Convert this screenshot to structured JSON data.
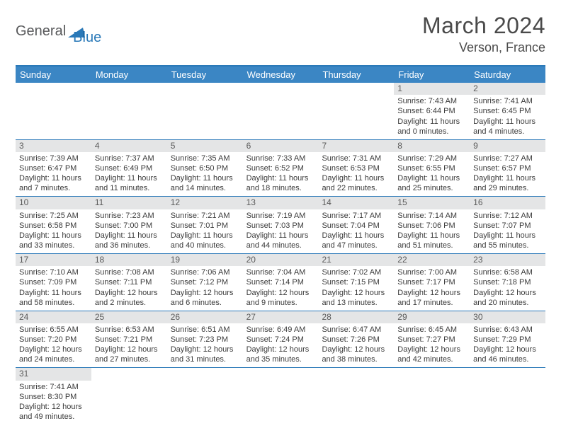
{
  "brand": {
    "part1": "General",
    "part2": "Blue"
  },
  "title": "March 2024",
  "location": "Verson, France",
  "colors": {
    "accent": "#2a79b8",
    "header_bg": "#3b86c4",
    "daynum_bg": "#e4e5e6",
    "text": "#3a3a3a",
    "title_text": "#4a4a4a"
  },
  "dow": [
    "Sunday",
    "Monday",
    "Tuesday",
    "Wednesday",
    "Thursday",
    "Friday",
    "Saturday"
  ],
  "weeks": [
    [
      {},
      {},
      {},
      {},
      {},
      {
        "d": "1",
        "sr": "7:43 AM",
        "ss": "6:44 PM",
        "dl": "11 hours and 0 minutes."
      },
      {
        "d": "2",
        "sr": "7:41 AM",
        "ss": "6:45 PM",
        "dl": "11 hours and 4 minutes."
      }
    ],
    [
      {
        "d": "3",
        "sr": "7:39 AM",
        "ss": "6:47 PM",
        "dl": "11 hours and 7 minutes."
      },
      {
        "d": "4",
        "sr": "7:37 AM",
        "ss": "6:49 PM",
        "dl": "11 hours and 11 minutes."
      },
      {
        "d": "5",
        "sr": "7:35 AM",
        "ss": "6:50 PM",
        "dl": "11 hours and 14 minutes."
      },
      {
        "d": "6",
        "sr": "7:33 AM",
        "ss": "6:52 PM",
        "dl": "11 hours and 18 minutes."
      },
      {
        "d": "7",
        "sr": "7:31 AM",
        "ss": "6:53 PM",
        "dl": "11 hours and 22 minutes."
      },
      {
        "d": "8",
        "sr": "7:29 AM",
        "ss": "6:55 PM",
        "dl": "11 hours and 25 minutes."
      },
      {
        "d": "9",
        "sr": "7:27 AM",
        "ss": "6:57 PM",
        "dl": "11 hours and 29 minutes."
      }
    ],
    [
      {
        "d": "10",
        "sr": "7:25 AM",
        "ss": "6:58 PM",
        "dl": "11 hours and 33 minutes."
      },
      {
        "d": "11",
        "sr": "7:23 AM",
        "ss": "7:00 PM",
        "dl": "11 hours and 36 minutes."
      },
      {
        "d": "12",
        "sr": "7:21 AM",
        "ss": "7:01 PM",
        "dl": "11 hours and 40 minutes."
      },
      {
        "d": "13",
        "sr": "7:19 AM",
        "ss": "7:03 PM",
        "dl": "11 hours and 44 minutes."
      },
      {
        "d": "14",
        "sr": "7:17 AM",
        "ss": "7:04 PM",
        "dl": "11 hours and 47 minutes."
      },
      {
        "d": "15",
        "sr": "7:14 AM",
        "ss": "7:06 PM",
        "dl": "11 hours and 51 minutes."
      },
      {
        "d": "16",
        "sr": "7:12 AM",
        "ss": "7:07 PM",
        "dl": "11 hours and 55 minutes."
      }
    ],
    [
      {
        "d": "17",
        "sr": "7:10 AM",
        "ss": "7:09 PM",
        "dl": "11 hours and 58 minutes."
      },
      {
        "d": "18",
        "sr": "7:08 AM",
        "ss": "7:11 PM",
        "dl": "12 hours and 2 minutes."
      },
      {
        "d": "19",
        "sr": "7:06 AM",
        "ss": "7:12 PM",
        "dl": "12 hours and 6 minutes."
      },
      {
        "d": "20",
        "sr": "7:04 AM",
        "ss": "7:14 PM",
        "dl": "12 hours and 9 minutes."
      },
      {
        "d": "21",
        "sr": "7:02 AM",
        "ss": "7:15 PM",
        "dl": "12 hours and 13 minutes."
      },
      {
        "d": "22",
        "sr": "7:00 AM",
        "ss": "7:17 PM",
        "dl": "12 hours and 17 minutes."
      },
      {
        "d": "23",
        "sr": "6:58 AM",
        "ss": "7:18 PM",
        "dl": "12 hours and 20 minutes."
      }
    ],
    [
      {
        "d": "24",
        "sr": "6:55 AM",
        "ss": "7:20 PM",
        "dl": "12 hours and 24 minutes."
      },
      {
        "d": "25",
        "sr": "6:53 AM",
        "ss": "7:21 PM",
        "dl": "12 hours and 27 minutes."
      },
      {
        "d": "26",
        "sr": "6:51 AM",
        "ss": "7:23 PM",
        "dl": "12 hours and 31 minutes."
      },
      {
        "d": "27",
        "sr": "6:49 AM",
        "ss": "7:24 PM",
        "dl": "12 hours and 35 minutes."
      },
      {
        "d": "28",
        "sr": "6:47 AM",
        "ss": "7:26 PM",
        "dl": "12 hours and 38 minutes."
      },
      {
        "d": "29",
        "sr": "6:45 AM",
        "ss": "7:27 PM",
        "dl": "12 hours and 42 minutes."
      },
      {
        "d": "30",
        "sr": "6:43 AM",
        "ss": "7:29 PM",
        "dl": "12 hours and 46 minutes."
      }
    ],
    [
      {
        "d": "31",
        "sr": "7:41 AM",
        "ss": "8:30 PM",
        "dl": "12 hours and 49 minutes."
      },
      {},
      {},
      {},
      {},
      {},
      {}
    ]
  ],
  "labels": {
    "sunrise": "Sunrise:",
    "sunset": "Sunset:",
    "daylight": "Daylight:"
  }
}
